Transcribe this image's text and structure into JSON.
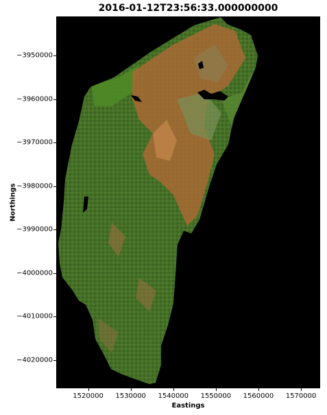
{
  "chart_data": {
    "type": "map",
    "title": "2016-01-12T23:56:33.000000000",
    "xlabel": "Eastings",
    "ylabel": "Northings",
    "xlim": [
      1512500,
      1574500
    ],
    "ylim": [
      -4026500,
      -3941000
    ],
    "xticks": [
      1520000,
      1530000,
      1540000,
      1550000,
      1560000,
      1570000
    ],
    "xtick_labels": [
      "1520000",
      "1530000",
      "1540000",
      "1550000",
      "1560000",
      "1570000"
    ],
    "yticks": [
      -3950000,
      -3960000,
      -3970000,
      -3980000,
      -3990000,
      -4000000,
      -4010000,
      -4020000
    ],
    "ytick_labels": [
      "−3950000",
      "−3960000",
      "−3970000",
      "−3980000",
      "−3990000",
      "−4000000",
      "−4010000",
      "−4020000"
    ],
    "background": "#000000",
    "colors": {
      "forest_green": "#3f6a22",
      "bright_green": "#4f8a26",
      "bare_orange": "#a86a35",
      "light_orange": "#c0844a",
      "water": "#000000",
      "urban": "#9c8f8a"
    }
  }
}
